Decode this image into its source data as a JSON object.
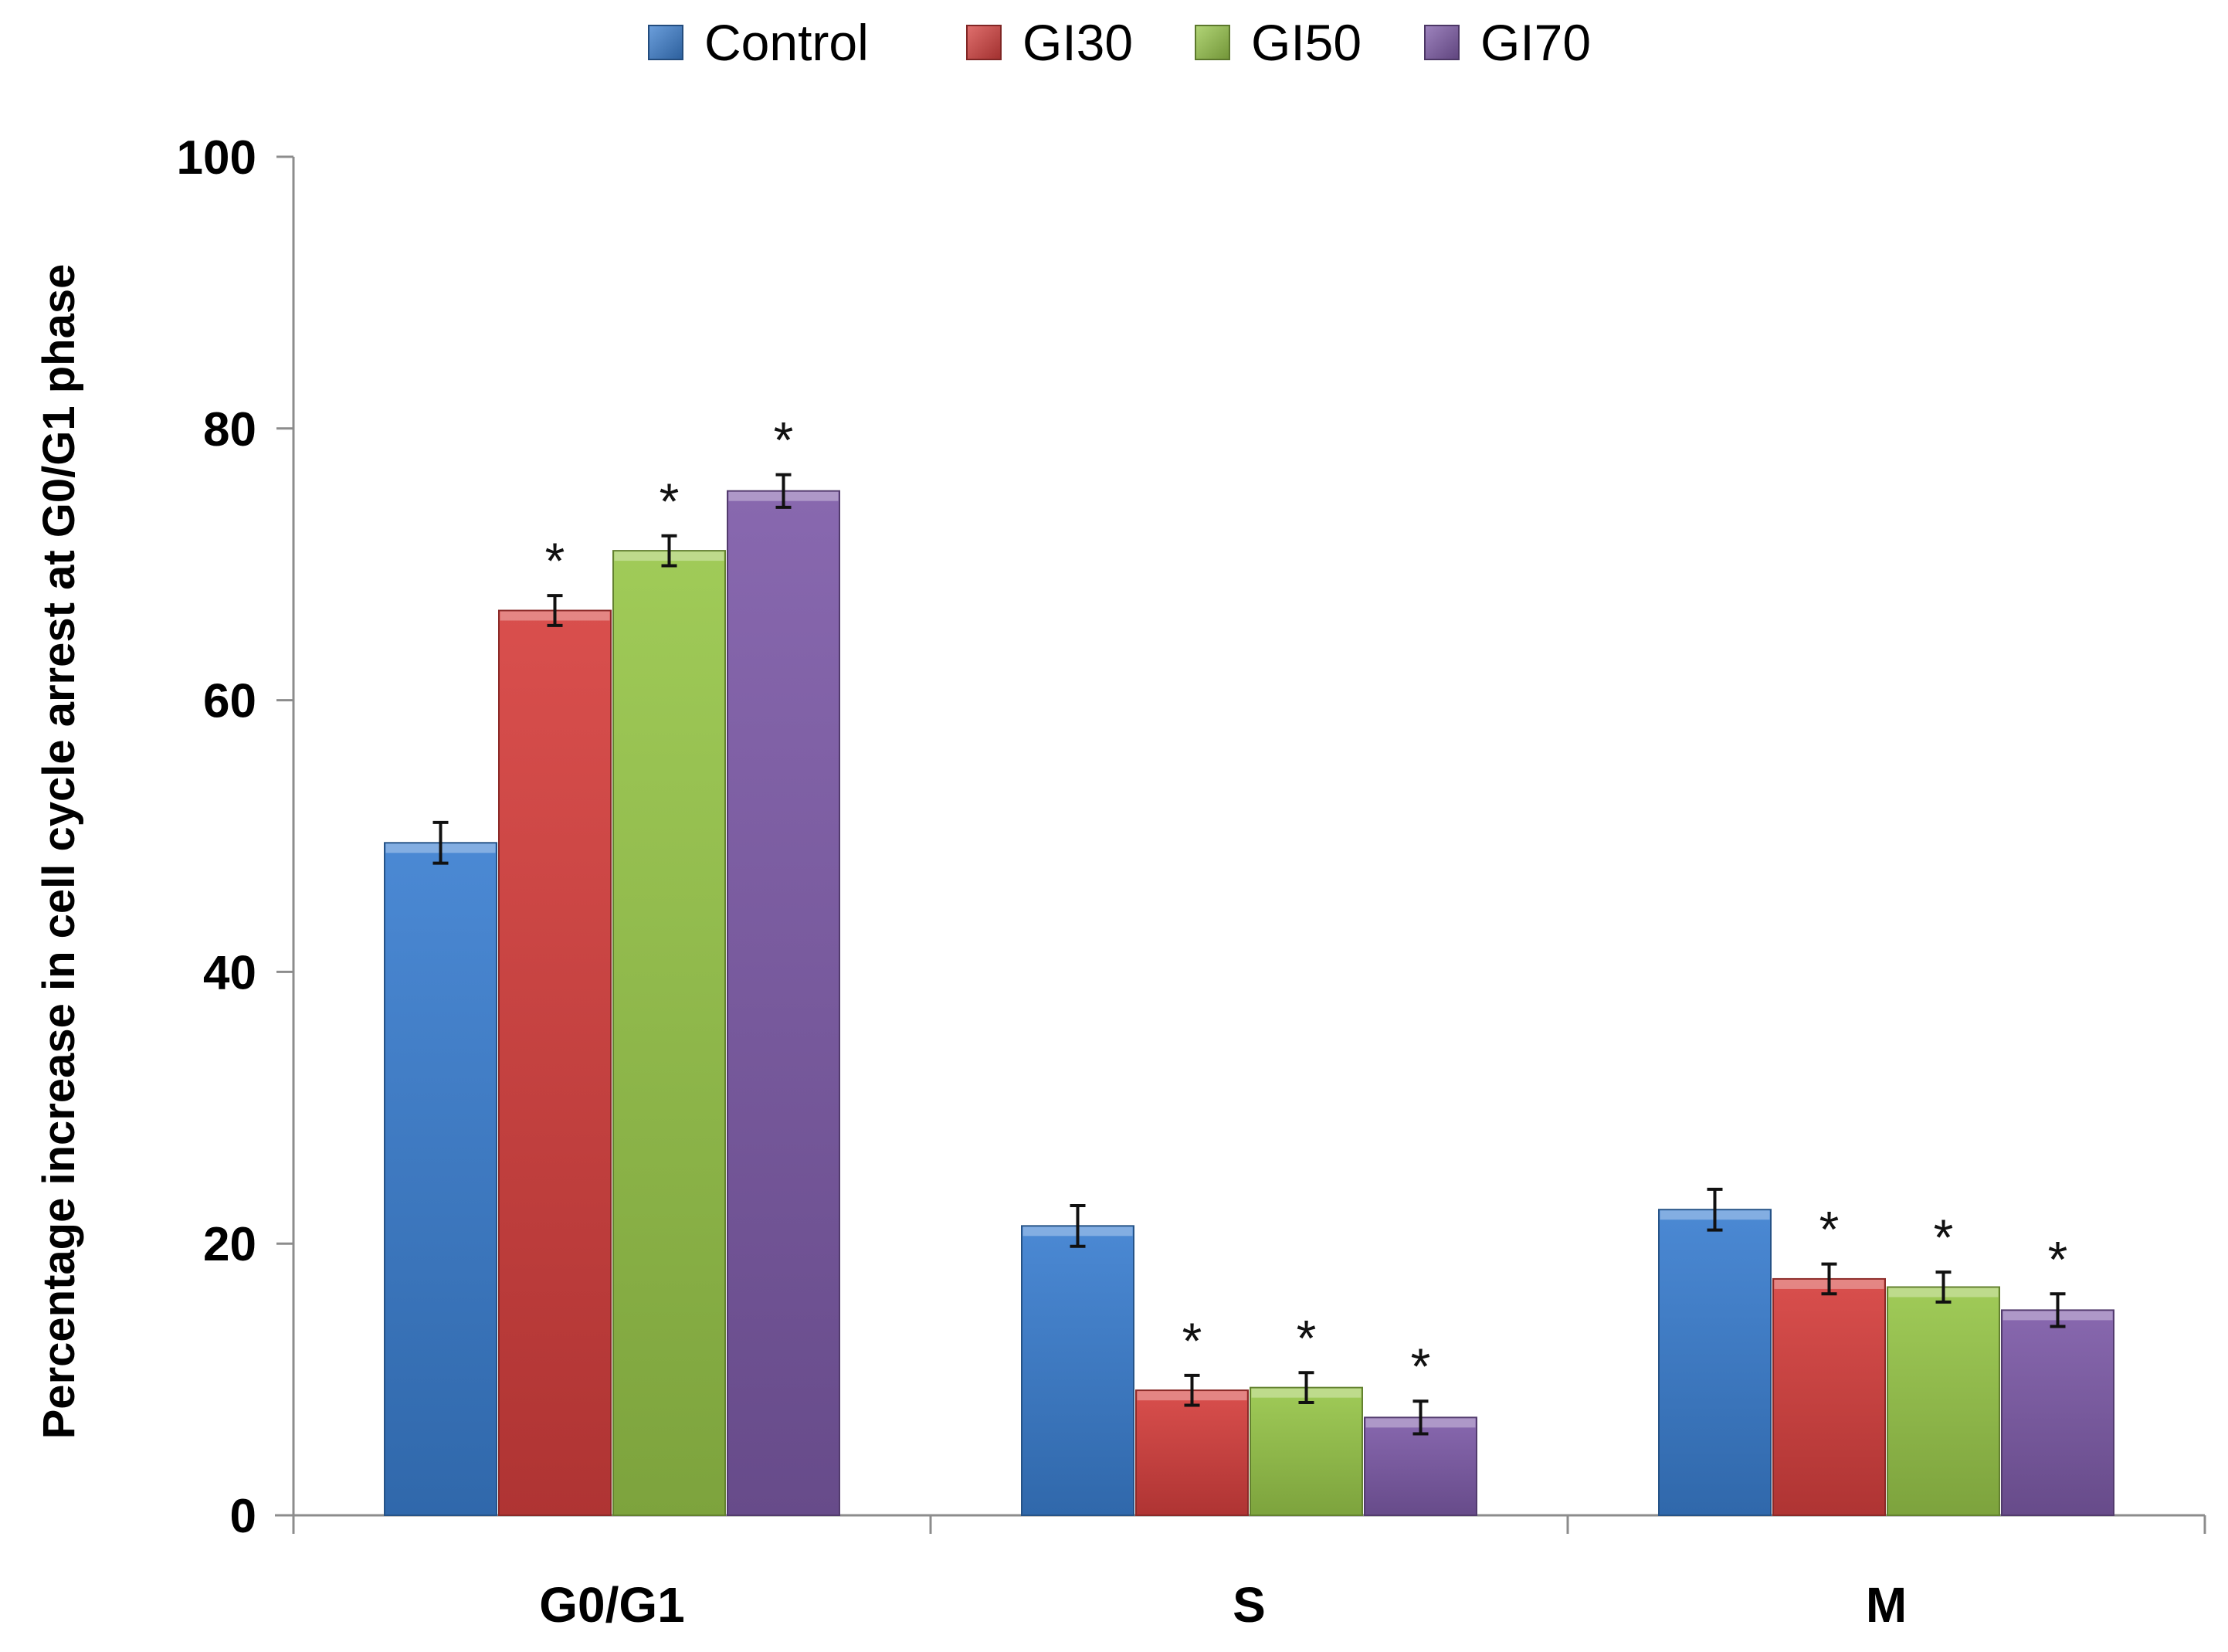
{
  "chart_data": {
    "type": "bar",
    "title": "",
    "xlabel": "",
    "ylabel": "Percentage increase in cell cycle arrest at G0/G1 phase",
    "categories": [
      "G0/G1",
      "S",
      "M"
    ],
    "series": [
      {
        "name": "Control",
        "color": "#3B7FD0",
        "values": [
          49.5,
          21.3,
          22.5
        ],
        "errors": [
          1.5,
          1.5,
          1.5
        ],
        "significant": [
          false,
          false,
          false
        ]
      },
      {
        "name": "GI30",
        "color": "#D6403E",
        "values": [
          66.6,
          9.2,
          17.4
        ],
        "errors": [
          1.1,
          1.1,
          1.1
        ],
        "significant": [
          true,
          true,
          true
        ]
      },
      {
        "name": "GI50",
        "color": "#98C74A",
        "values": [
          71.0,
          9.4,
          16.8
        ],
        "errors": [
          1.1,
          1.1,
          1.1
        ],
        "significant": [
          true,
          true,
          true
        ]
      },
      {
        "name": "GI70",
        "color": "#7E5BA8",
        "values": [
          75.4,
          7.2,
          15.1
        ],
        "errors": [
          1.2,
          1.2,
          1.2
        ],
        "significant": [
          true,
          true,
          true
        ]
      }
    ],
    "ylim": [
      0,
      100
    ],
    "yticks": [
      0,
      20,
      40,
      60,
      80,
      100
    ],
    "significance_marker": "*",
    "legend_position": "top-center",
    "grid": false
  }
}
